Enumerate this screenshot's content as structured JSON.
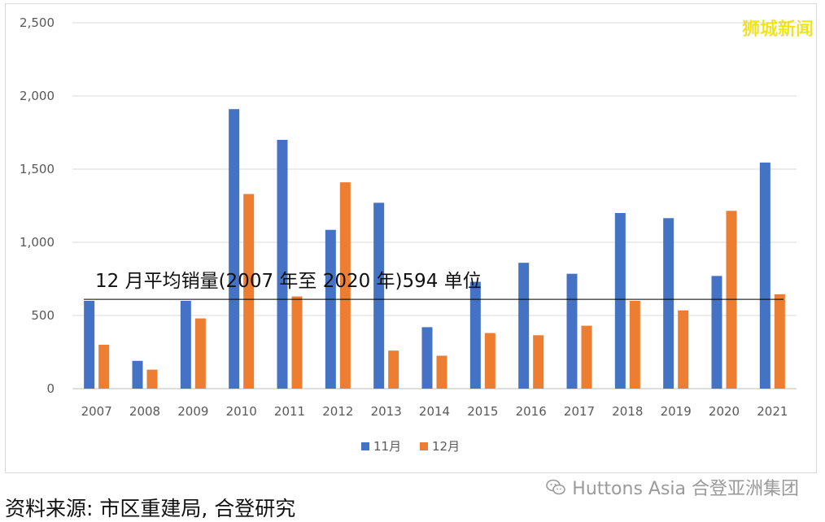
{
  "watermark": "狮城新闻",
  "source_note": "资料来源: 市区重建局, 合登研究",
  "brand": {
    "name": "Huttons Asia 合登亚洲集团",
    "icon": "wechat-icon"
  },
  "chart_data": {
    "type": "bar",
    "categories": [
      "2007",
      "2008",
      "2009",
      "2010",
      "2011",
      "2012",
      "2013",
      "2014",
      "2015",
      "2016",
      "2017",
      "2018",
      "2019",
      "2020",
      "2021"
    ],
    "series": [
      {
        "name": "11月",
        "color": "#4472c4",
        "values": [
          600,
          190,
          600,
          1910,
          1700,
          1085,
          1270,
          420,
          730,
          860,
          785,
          1200,
          1165,
          770,
          1545
        ]
      },
      {
        "name": "12月",
        "color": "#ed7d31",
        "values": [
          300,
          130,
          480,
          1330,
          630,
          1410,
          260,
          225,
          380,
          365,
          430,
          600,
          535,
          1215,
          645
        ]
      }
    ],
    "ylim": [
      0,
      2500
    ],
    "yticks": [
      0,
      500,
      1000,
      1500,
      2000,
      2500
    ],
    "ytick_labels": [
      "0",
      "500",
      "1,000",
      "1,500",
      "2,000",
      "2,500"
    ],
    "gridlines": true,
    "legend_position": "bottom",
    "reference_line": {
      "value": 594,
      "label": "12 月平均销量(2007 年至 2020 年)594 单位"
    }
  }
}
